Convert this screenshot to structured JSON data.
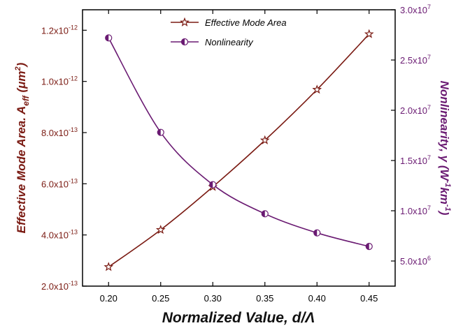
{
  "chart_data": {
    "type": "line",
    "xlabel": "Normalized Value, d/Λ",
    "ylabel_left": "Effective Mode Area. Aₑff (μm²)",
    "ylabel_right": "Nonlinearity, γ (W⁻¹km⁻¹)",
    "x": [
      0.2,
      0.25,
      0.3,
      0.35,
      0.4,
      0.45
    ],
    "xlim": [
      0.175,
      0.475
    ],
    "x_ticks": [
      {
        "v": 0.2,
        "label": "0.20"
      },
      {
        "v": 0.25,
        "label": "0.25"
      },
      {
        "v": 0.3,
        "label": "0.30"
      },
      {
        "v": 0.35,
        "label": "0.35"
      },
      {
        "v": 0.4,
        "label": "0.40"
      },
      {
        "v": 0.45,
        "label": "0.45"
      }
    ],
    "y_left": {
      "lim": [
        2e-13,
        1.28e-12
      ],
      "ticks": [
        {
          "v": 2e-13,
          "m": "2.0x10",
          "e": "-13"
        },
        {
          "v": 4e-13,
          "m": "4.0x10",
          "e": "-13"
        },
        {
          "v": 6e-13,
          "m": "6.0x10",
          "e": "-13"
        },
        {
          "v": 8e-13,
          "m": "8.0x10",
          "e": "-13"
        },
        {
          "v": 1e-12,
          "m": "1.0x10",
          "e": "-12"
        },
        {
          "v": 1.2e-12,
          "m": "1.2x10",
          "e": "-12"
        }
      ]
    },
    "y_right": {
      "lim": [
        2500000.0,
        30000000.0
      ],
      "ticks": [
        {
          "v": 5000000.0,
          "m": "5.0x10",
          "e": "6"
        },
        {
          "v": 10000000.0,
          "m": "1.0x10",
          "e": "7"
        },
        {
          "v": 15000000.0,
          "m": "1.5x10",
          "e": "7"
        },
        {
          "v": 20000000.0,
          "m": "2.0x10",
          "e": "7"
        },
        {
          "v": 25000000.0,
          "m": "2.5x10",
          "e": "7"
        },
        {
          "v": 30000000.0,
          "m": "3.0x10",
          "e": "7"
        }
      ]
    },
    "series": [
      {
        "name": "Effective Mode Area",
        "axis": "left",
        "marker": "star",
        "values": [
          2.75e-13,
          4.2e-13,
          5.88e-13,
          7.7e-13,
          9.68e-13,
          1.185e-12
        ]
      },
      {
        "name": "Nonlinearity",
        "axis": "right",
        "marker": "half-circle",
        "values": [
          27200000.0,
          17800000.0,
          12600000.0,
          9700000.0,
          7800000.0,
          6450000.0
        ]
      }
    ],
    "legend_position": "top-center",
    "grid": false
  },
  "colors": {
    "area": "#7a1a12",
    "nonlinearity": "#6a1a72",
    "axis": "#000000"
  }
}
